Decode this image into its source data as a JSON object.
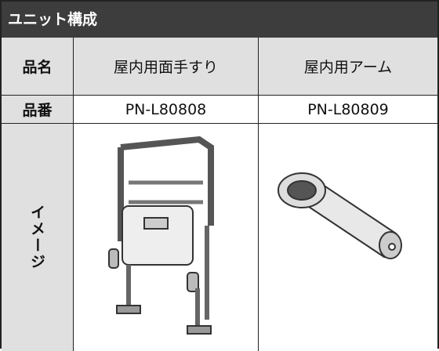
{
  "title": "ユニット構成",
  "table": {
    "header": [
      "品名",
      "屋内用面手すり",
      "屋内用アーム"
    ],
    "rows": [
      [
        "品番",
        "PN-L80808",
        "PN-L80809"
      ]
    ],
    "image_row_label": "イメージ"
  }
}
